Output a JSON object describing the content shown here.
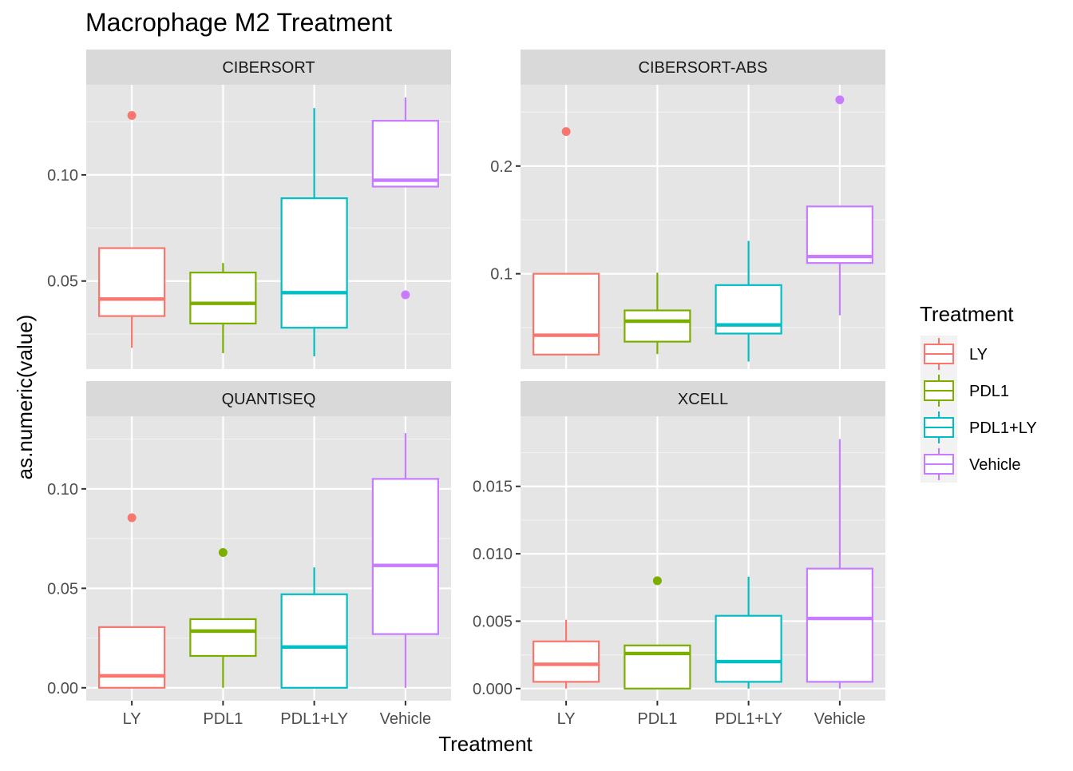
{
  "chart_data": {
    "type": "boxplot",
    "title": "Macrophage M2 Treatment",
    "xlabel": "Treatment",
    "ylabel": "as.numeric(value)",
    "categories": [
      "LY",
      "PDL1",
      "PDL1+LY",
      "Vehicle"
    ],
    "colors": {
      "LY": "#F8766D",
      "PDL1": "#7CAE00",
      "PDL1+LY": "#00BFC4",
      "Vehicle": "#C77CFF"
    },
    "panel_background": "#E5E5E5",
    "strip_background": "#D9D9D9",
    "legend": {
      "title": "Treatment",
      "position": "right",
      "items": [
        "LY",
        "PDL1",
        "PDL1+LY",
        "Vehicle"
      ]
    },
    "facets": [
      {
        "name": "CIBERSORT",
        "ylim": [
          0.0085,
          0.1425
        ],
        "yticks": [
          0.05,
          0.1
        ],
        "ytick_labels": [
          "0.05",
          "0.10"
        ],
        "boxes": [
          {
            "category": "LY",
            "whisker_low": 0.0185,
            "q1": 0.0335,
            "median": 0.0415,
            "q3": 0.0655,
            "whisker_high": 0.0655,
            "outliers": [
              0.128
            ]
          },
          {
            "category": "PDL1",
            "whisker_low": 0.016,
            "q1": 0.03,
            "median": 0.0395,
            "q3": 0.054,
            "whisker_high": 0.0585,
            "outliers": []
          },
          {
            "category": "PDL1+LY",
            "whisker_low": 0.0145,
            "q1": 0.028,
            "median": 0.0445,
            "q3": 0.089,
            "whisker_high": 0.1315,
            "outliers": []
          },
          {
            "category": "Vehicle",
            "whisker_low": 0.0945,
            "q1": 0.0945,
            "median": 0.0975,
            "q3": 0.1255,
            "whisker_high": 0.1365,
            "outliers": [
              0.0435
            ]
          }
        ]
      },
      {
        "name": "CIBERSORT-ABS",
        "ylim": [
          0.0115,
          0.2755
        ],
        "yticks": [
          0.1,
          0.2
        ],
        "ytick_labels": [
          "0.1",
          "0.2"
        ],
        "boxes": [
          {
            "category": "LY",
            "whisker_low": 0.025,
            "q1": 0.025,
            "median": 0.043,
            "q3": 0.1,
            "whisker_high": 0.1,
            "outliers": [
              0.232
            ]
          },
          {
            "category": "PDL1",
            "whisker_low": 0.0255,
            "q1": 0.037,
            "median": 0.056,
            "q3": 0.066,
            "whisker_high": 0.101,
            "outliers": []
          },
          {
            "category": "PDL1+LY",
            "whisker_low": 0.0185,
            "q1": 0.0445,
            "median": 0.0525,
            "q3": 0.0895,
            "whisker_high": 0.1305,
            "outliers": []
          },
          {
            "category": "Vehicle",
            "whisker_low": 0.0615,
            "q1": 0.11,
            "median": 0.116,
            "q3": 0.1625,
            "whisker_high": 0.1625,
            "outliers": [
              0.2615
            ]
          }
        ]
      },
      {
        "name": "QUANTISEQ",
        "ylim": [
          -0.0065,
          0.1365
        ],
        "yticks": [
          0,
          0.05,
          0.1
        ],
        "ytick_labels": [
          "0.00",
          "0.05",
          "0.10"
        ],
        "boxes": [
          {
            "category": "LY",
            "whisker_low": 0.0,
            "q1": 0.0,
            "median": 0.006,
            "q3": 0.0305,
            "whisker_high": 0.0305,
            "outliers": [
              0.0855
            ]
          },
          {
            "category": "PDL1",
            "whisker_low": 0.0,
            "q1": 0.016,
            "median": 0.0285,
            "q3": 0.0345,
            "whisker_high": 0.0345,
            "outliers": [
              0.068
            ]
          },
          {
            "category": "PDL1+LY",
            "whisker_low": 0.0,
            "q1": 0.0,
            "median": 0.0205,
            "q3": 0.047,
            "whisker_high": 0.0605,
            "outliers": []
          },
          {
            "category": "Vehicle",
            "whisker_low": 0.0,
            "q1": 0.027,
            "median": 0.0615,
            "q3": 0.105,
            "whisker_high": 0.128,
            "outliers": []
          }
        ]
      },
      {
        "name": "XCELL",
        "ylim": [
          -0.0009,
          0.0202
        ],
        "yticks": [
          0,
          0.005,
          0.01,
          0.015
        ],
        "ytick_labels": [
          "0.000",
          "0.005",
          "0.010",
          "0.015"
        ],
        "boxes": [
          {
            "category": "LY",
            "whisker_low": 0.0,
            "q1": 0.0005,
            "median": 0.0018,
            "q3": 0.0035,
            "whisker_high": 0.0051,
            "outliers": []
          },
          {
            "category": "PDL1",
            "whisker_low": 0.0,
            "q1": 0.0,
            "median": 0.0026,
            "q3": 0.0032,
            "whisker_high": 0.0032,
            "outliers": [
              0.008
            ]
          },
          {
            "category": "PDL1+LY",
            "whisker_low": 0.0,
            "q1": 0.0005,
            "median": 0.002,
            "q3": 0.0054,
            "whisker_high": 0.0083,
            "outliers": []
          },
          {
            "category": "Vehicle",
            "whisker_low": 0.0,
            "q1": 0.0005,
            "median": 0.0052,
            "q3": 0.0089,
            "whisker_high": 0.0185,
            "outliers": []
          }
        ]
      }
    ]
  }
}
